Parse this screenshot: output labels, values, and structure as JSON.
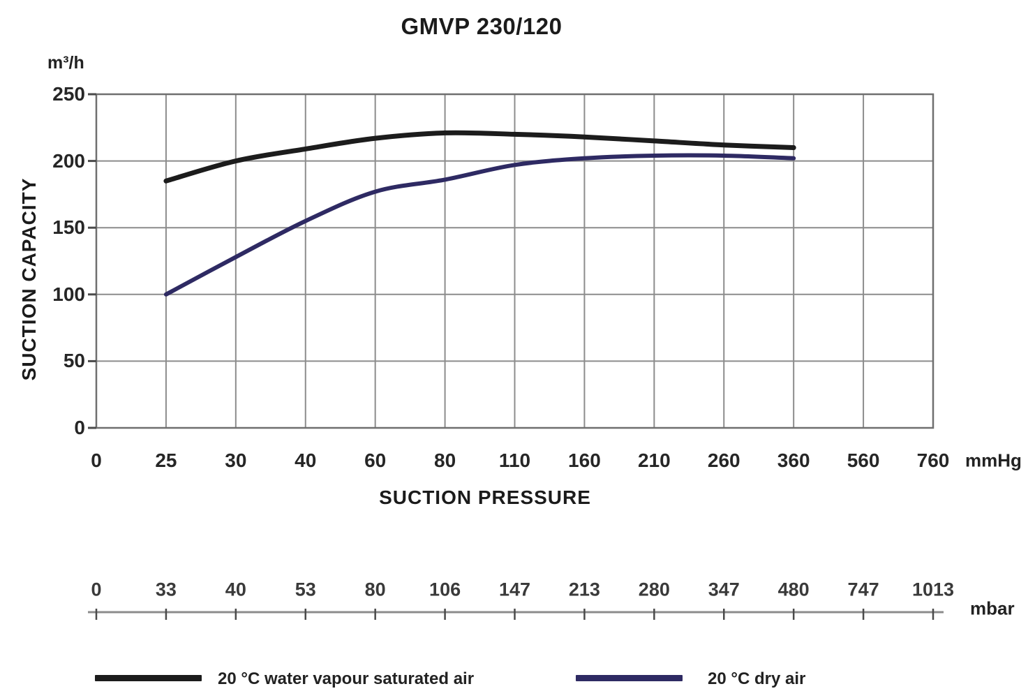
{
  "chart_data": {
    "type": "line",
    "title": "GMVP 230/120",
    "y_axis": {
      "unit": "m³/h",
      "label": "SUCTION CAPACITY",
      "min": 0,
      "max": 250,
      "ticks": [
        0,
        50,
        100,
        150,
        200,
        250
      ]
    },
    "x_axis": {
      "label": "SUCTION PRESSURE",
      "unit": "mmHg",
      "ticks": [
        0,
        25,
        30,
        40,
        60,
        80,
        110,
        160,
        210,
        260,
        360,
        560,
        760
      ],
      "scale": "categorical-even-spacing"
    },
    "x_axis_secondary": {
      "unit": "mbar",
      "ticks": [
        0,
        33,
        40,
        53,
        80,
        106,
        147,
        213,
        280,
        347,
        480,
        747,
        1013
      ]
    },
    "grid": true,
    "legend_position": "bottom",
    "series": [
      {
        "name": "20 °C water vapour saturated air",
        "color": "#1c1c1c",
        "stroke_width": 7,
        "x": [
          25,
          30,
          40,
          60,
          80,
          110,
          160,
          210,
          260,
          360
        ],
        "values": [
          185,
          200,
          209,
          217,
          221,
          220,
          218,
          215,
          212,
          210
        ]
      },
      {
        "name": "20 °C dry air",
        "color": "#2e2a63",
        "stroke_width": 6,
        "x": [
          25,
          30,
          40,
          60,
          80,
          110,
          160,
          210,
          260,
          360
        ],
        "values": [
          100,
          128,
          155,
          177,
          186,
          197,
          202,
          204,
          204,
          202
        ]
      }
    ],
    "colors": {
      "grid": "#8c8c8c",
      "frame": "#6f6f6f",
      "axis_tick": "#4a4a4a",
      "secondary_axis_line": "#8c8c8c"
    }
  }
}
